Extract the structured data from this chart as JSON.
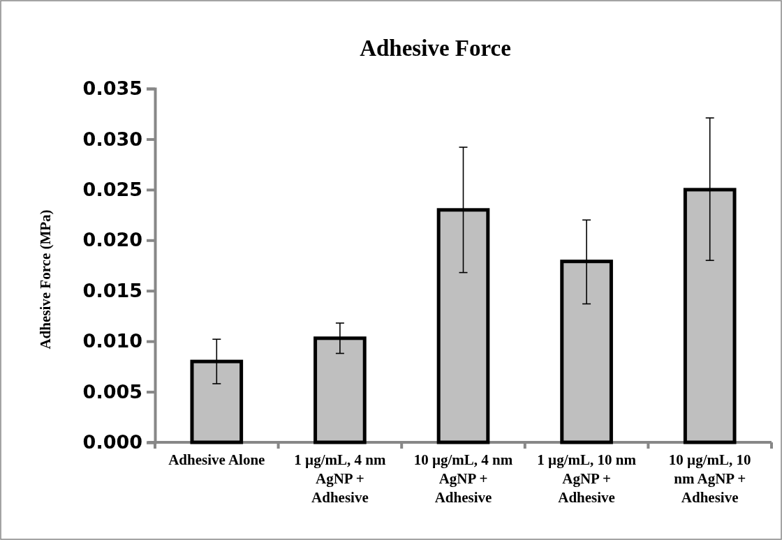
{
  "chart_data": {
    "type": "bar",
    "title": "Adhesive Force",
    "ylabel": "Adhesive Force (MPa)",
    "categories": [
      "Adhesive Alone",
      "1 µg/mL, 4 nm AgNP + Adhesive",
      "10 µg/mL, 4 nm AgNP + Adhesive",
      "1 µg/mL, 10 nm AgNP + Adhesive",
      "10 µg/mL, 10 nm AgNP + Adhesive"
    ],
    "values": [
      0.008,
      0.0103,
      0.023,
      0.0179,
      0.025
    ],
    "errors": [
      [
        0.0058,
        0.0102
      ],
      [
        0.0088,
        0.0118
      ],
      [
        0.0168,
        0.0292
      ],
      [
        0.0137,
        0.022
      ],
      [
        0.018,
        0.0321
      ]
    ],
    "color": "#bfbfbf",
    "ylim": [
      0,
      0.035
    ],
    "yticks": [
      {
        "value": 0,
        "label": "0.000"
      },
      {
        "value": 0.005,
        "label": "0.005"
      },
      {
        "value": 0.01,
        "label": "0.010"
      },
      {
        "value": 0.015,
        "label": "0.015"
      },
      {
        "value": 0.02,
        "label": "0.020"
      },
      {
        "value": 0.025,
        "label": "0.025"
      },
      {
        "value": 0.03,
        "label": "0.030"
      },
      {
        "value": 0.035,
        "label": "0.035"
      }
    ],
    "grid": false
  }
}
